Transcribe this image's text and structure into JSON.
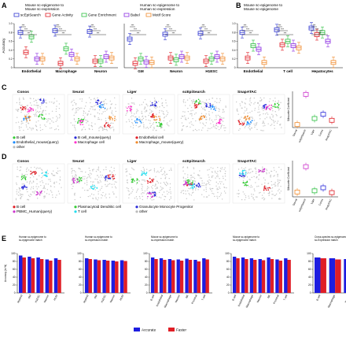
{
  "colors": {
    "scEpiSearch": "#2f36d1",
    "Gene Activity": "#e01e26",
    "Gene Enrichment": "#2bbf3f",
    "Babel": "#8a2be2",
    "Motif Score": "#f08a2c",
    "Accurate": "#1d1de0",
    "Faster": "#e01e26"
  },
  "panelA": {
    "letter": "A",
    "title_left": "Mouse sc-epigenome to\nMouse sc-expression",
    "title_right": "Human sc-epigenome to\nHuman sc-expression",
    "ylabel": "Accuracy",
    "legend": [
      "scEpiSearch",
      "Gene Activity",
      "Gene Enrichment",
      "Babel",
      "Motif Score"
    ],
    "groups_left": [
      "Endothelial",
      "Macrophage",
      "Neuron"
    ],
    "groups_right": [
      "GM",
      "Neuron",
      "H1ESC"
    ],
    "yticks": [
      "0",
      "0.2",
      "0.4",
      "0.6",
      "0.8",
      "1.0"
    ],
    "sig": "***"
  },
  "panelB": {
    "letter": "B",
    "title": "Mouse sc-epigenome to\nMouse sc-epigenome",
    "groups": [
      "Endothelial",
      "T cell",
      "Hepatocytes"
    ],
    "sig": "***"
  },
  "panelC": {
    "letter": "C",
    "methods": [
      "Conos",
      "Seurat",
      "Liger",
      "scEpiSearch",
      "SnapATAC"
    ],
    "legend": [
      "B cell",
      "B cell_mouse(query)",
      "Endothelial cell",
      "Endothelial_mouse(query)",
      "Macrophage cell",
      "Macrophage_mouse(query)",
      "other"
    ],
    "legend_colors": [
      "#33cc33",
      "#2b2bd9",
      "#e01e26",
      "#1a8cff",
      "#ff33cc",
      "#f08a2c",
      "#bbbbbb"
    ],
    "ylabel": "Silhouette Coefficient",
    "xcats": [
      "Seurat",
      "scEpiSearch",
      "Liger",
      "Conos",
      "SnapATAC"
    ]
  },
  "panelD": {
    "letter": "D",
    "methods": [
      "Conos",
      "Seurat",
      "Liger",
      "scEpiSearch",
      "SnapATAC"
    ],
    "legend": [
      "B cell",
      "Plasmacytoid Dendritic cell",
      "Granulocyte Monocyte Progenitor",
      "PBMC_Human(query)",
      "T cell",
      "other"
    ],
    "legend_colors": [
      "#e01e26",
      "#33cc33",
      "#2b2bd9",
      "#cc33cc",
      "#22ddee",
      "#bbbbbb"
    ],
    "ylabel": "Silhouette Coefficient",
    "xcats": [
      "Seurat",
      "scEpiSearch",
      "Liger",
      "Conos",
      "SnapATAC"
    ]
  },
  "panelE": {
    "letter": "E",
    "ylabel": "Accuracy (in %)",
    "legend": [
      "Accurate",
      "Faster"
    ],
    "yticks": [
      "0",
      "20",
      "40",
      "60",
      "80",
      "100"
    ]
  },
  "chart_data": [
    {
      "panel": "A",
      "type": "box",
      "ylabel": "Accuracy",
      "ylim": [
        0,
        1.0
      ],
      "series": [
        {
          "name": "scEpiSearch",
          "values": [
            0.8,
            0.84,
            0.82,
            0.65,
            0.76,
            0.78
          ]
        },
        {
          "name": "Gene Activity",
          "values": [
            0.35,
            0.1,
            0.15,
            0.1,
            0.22,
            0.15
          ]
        },
        {
          "name": "Gene Enrichment",
          "values": [
            0.7,
            0.43,
            0.15,
            0.2,
            0.18,
            0.2
          ]
        },
        {
          "name": "Babel",
          "values": [
            0.2,
            0.3,
            0.25,
            0.13,
            0.25,
            0.25
          ]
        },
        {
          "name": "Motif Score",
          "values": [
            0.2,
            0.2,
            0.22,
            0.12,
            0.22,
            0.2
          ]
        }
      ],
      "categories": [
        "Endothelial",
        "Macrophage",
        "Neuron",
        "GM",
        "Neuron",
        "H1ESC"
      ]
    },
    {
      "panel": "B",
      "type": "box",
      "ylim": [
        0,
        1.0
      ],
      "categories": [
        "Endothelial",
        "T cell",
        "Hepatocytes"
      ],
      "series": [
        {
          "name": "scEpiSearch",
          "values": [
            0.8,
            0.86,
            0.9
          ]
        },
        {
          "name": "Gene Activity",
          "values": [
            0.22,
            0.52,
            0.75
          ]
        },
        {
          "name": "Gene Enrichment",
          "values": [
            0.5,
            0.6,
            0.8
          ]
        },
        {
          "name": "Babel",
          "values": [
            0.42,
            0.5,
            0.6
          ]
        },
        {
          "name": "Motif Score",
          "values": [
            0.12,
            0.45,
            0.12
          ]
        }
      ]
    },
    {
      "panel": "C",
      "type": "box",
      "ylabel": "Silhouette Coefficient",
      "categories": [
        "Seurat",
        "scEpiSearch",
        "Liger",
        "Conos",
        "SnapATAC"
      ],
      "values": [
        -0.05,
        0.45,
        0.05,
        0.12,
        0.02
      ],
      "colors": [
        "#f08a2c",
        "#cc33cc",
        "#2bbf3f",
        "#2b2bd9",
        "#e01e26"
      ]
    },
    {
      "panel": "D",
      "type": "box",
      "ylabel": "Silhouette Coefficient",
      "categories": [
        "Seurat",
        "scEpiSearch",
        "Liger",
        "Conos",
        "SnapATAC"
      ],
      "values": [
        -0.02,
        0.4,
        0.0,
        0.05,
        -0.03
      ],
      "colors": [
        "#f08a2c",
        "#cc33cc",
        "#2bbf3f",
        "#2b2bd9",
        "#e01e26"
      ]
    },
    {
      "panel": "E",
      "type": "bar",
      "ylabel": "Accuracy (in %)",
      "ylim": [
        0,
        100
      ],
      "subcharts": [
        {
          "title": "Human sc-epigenome to\nsc-epigenome match",
          "categories": [
            "Myeloid",
            "GM",
            "H1ESC",
            "Neuron",
            "HL60"
          ],
          "series": [
            {
              "name": "Accurate",
              "values": [
                95,
                92,
                90,
                85,
                88
              ]
            },
            {
              "name": "Faster",
              "values": [
                90,
                88,
                86,
                82,
                84
              ]
            }
          ]
        },
        {
          "title": "Human sc-epigenome to\nsc-expression match",
          "categories": [
            "Myeloid",
            "GM",
            "H1ESC",
            "Neuron",
            "HL60"
          ],
          "series": [
            {
              "name": "Accurate",
              "values": [
                88,
                85,
                84,
                82,
                83
              ]
            },
            {
              "name": "Faster",
              "values": [
                86,
                83,
                82,
                80,
                81
              ]
            }
          ]
        },
        {
          "title": "Mouse sc-epigenome to\nsc-expression match",
          "categories": [
            "B cell",
            "Endothelial",
            "Macrophage",
            "Neuron",
            "NK",
            "Proximal",
            "T cell"
          ],
          "series": [
            {
              "name": "Accurate",
              "values": [
                90,
                88,
                86,
                85,
                87,
                84,
                88
              ]
            },
            {
              "name": "Faster",
              "values": [
                86,
                84,
                83,
                82,
                84,
                80,
                85
              ]
            }
          ]
        },
        {
          "title": "Mouse sc-epigenome to\nsc-epigenome match",
          "categories": [
            "B cell",
            "Endothelial",
            "Macrophage",
            "Neuron",
            "NK",
            "Proximal",
            "T cell"
          ],
          "series": [
            {
              "name": "Accurate",
              "values": [
                92,
                90,
                88,
                86,
                90,
                85,
                88
              ]
            },
            {
              "name": "Faster",
              "values": [
                88,
                86,
                84,
                83,
                86,
                82,
                84
              ]
            }
          ]
        },
        {
          "title": "Cross-species sc-epigenome to\nsc-Expression match",
          "categories": [
            "B cell",
            "Macrophage",
            "Neuron"
          ],
          "series": [
            {
              "name": "Accurate",
              "values": [
                90,
                88,
                86
              ]
            },
            {
              "name": "Faster",
              "values": [
                88,
                85,
                84
              ]
            }
          ]
        }
      ]
    }
  ]
}
